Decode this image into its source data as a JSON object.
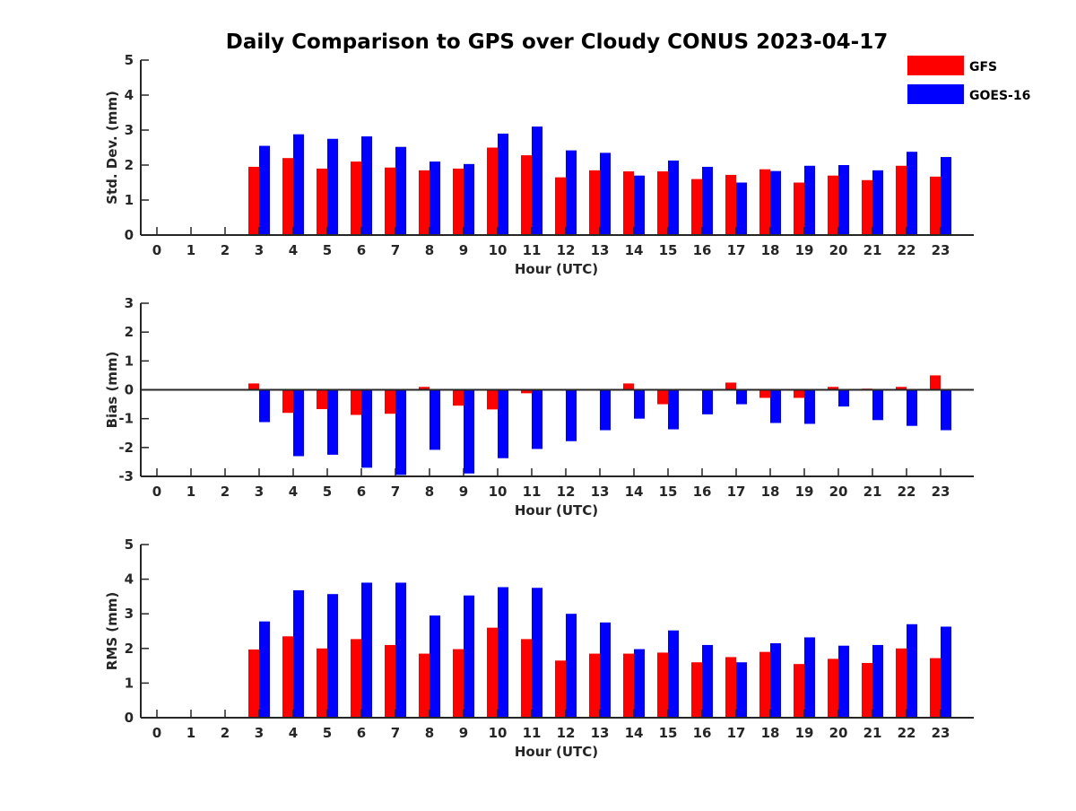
{
  "chart_data": {
    "type": "bar",
    "title": "Daily Comparison to GPS over Cloudy CONUS 2023-04-17",
    "legend": {
      "placement": "top-right",
      "entries": [
        {
          "name": "GFS",
          "color": "#ff0000"
        },
        {
          "name": "GOES-16",
          "color": "#0000ff"
        }
      ]
    },
    "categories": [
      "0",
      "1",
      "2",
      "3",
      "4",
      "5",
      "6",
      "7",
      "8",
      "9",
      "10",
      "11",
      "12",
      "13",
      "14",
      "15",
      "16",
      "17",
      "18",
      "19",
      "20",
      "21",
      "22",
      "23"
    ],
    "panels": [
      {
        "ylabel": "Std. Dev. (mm)",
        "xlabel": "Hour (UTC)",
        "ylim": [
          0,
          5
        ],
        "yticks": [
          0,
          1,
          2,
          3,
          4,
          5
        ],
        "series": [
          {
            "name": "GFS",
            "values": [
              null,
              null,
              null,
              1.95,
              2.2,
              1.9,
              2.1,
              1.93,
              1.85,
              1.9,
              2.5,
              2.28,
              1.65,
              1.85,
              1.82,
              1.82,
              1.6,
              1.72,
              1.88,
              1.5,
              1.7,
              1.57,
              1.98,
              1.67
            ]
          },
          {
            "name": "GOES-16",
            "values": [
              null,
              null,
              null,
              2.55,
              2.88,
              2.75,
              2.82,
              2.52,
              2.1,
              2.03,
              2.9,
              3.1,
              2.42,
              2.35,
              1.7,
              2.13,
              1.95,
              1.5,
              1.83,
              1.98,
              2.0,
              1.85,
              2.38,
              2.23
            ]
          }
        ]
      },
      {
        "ylabel": "Bias (mm)",
        "xlabel": "Hour (UTC)",
        "ylim": [
          -3,
          3
        ],
        "yticks": [
          -3,
          -2,
          -1,
          0,
          1,
          2,
          3
        ],
        "series": [
          {
            "name": "GFS",
            "values": [
              null,
              null,
              null,
              0.22,
              -0.8,
              -0.67,
              -0.87,
              -0.83,
              0.1,
              -0.55,
              -0.68,
              -0.12,
              -0.03,
              0,
              0.22,
              -0.5,
              -0.03,
              0.25,
              -0.28,
              -0.28,
              0.1,
              0.04,
              0.1,
              0.5
            ]
          },
          {
            "name": "GOES-16",
            "values": [
              null,
              null,
              null,
              -1.12,
              -2.3,
              -2.25,
              -2.7,
              -2.95,
              -2.08,
              -2.9,
              -2.37,
              -2.05,
              -1.78,
              -1.4,
              -1.0,
              -1.37,
              -0.85,
              -0.5,
              -1.15,
              -1.18,
              -0.58,
              -1.05,
              -1.25,
              -1.4
            ]
          }
        ]
      },
      {
        "ylabel": "RMS (mm)",
        "xlabel": "Hour (UTC)",
        "ylim": [
          0,
          5
        ],
        "yticks": [
          0,
          1,
          2,
          3,
          4,
          5
        ],
        "series": [
          {
            "name": "GFS",
            "values": [
              null,
              null,
              null,
              1.97,
              2.35,
              2.0,
              2.27,
              2.1,
              1.85,
              1.98,
              2.6,
              2.27,
              1.65,
              1.85,
              1.85,
              1.88,
              1.6,
              1.75,
              1.9,
              1.55,
              1.7,
              1.58,
              2.0,
              1.72
            ]
          },
          {
            "name": "GOES-16",
            "values": [
              null,
              null,
              null,
              2.78,
              3.68,
              3.57,
              3.9,
              3.9,
              2.95,
              3.53,
              3.77,
              3.75,
              3.0,
              2.75,
              1.98,
              2.52,
              2.1,
              1.6,
              2.15,
              2.32,
              2.08,
              2.1,
              2.7,
              2.63
            ]
          }
        ]
      }
    ]
  }
}
